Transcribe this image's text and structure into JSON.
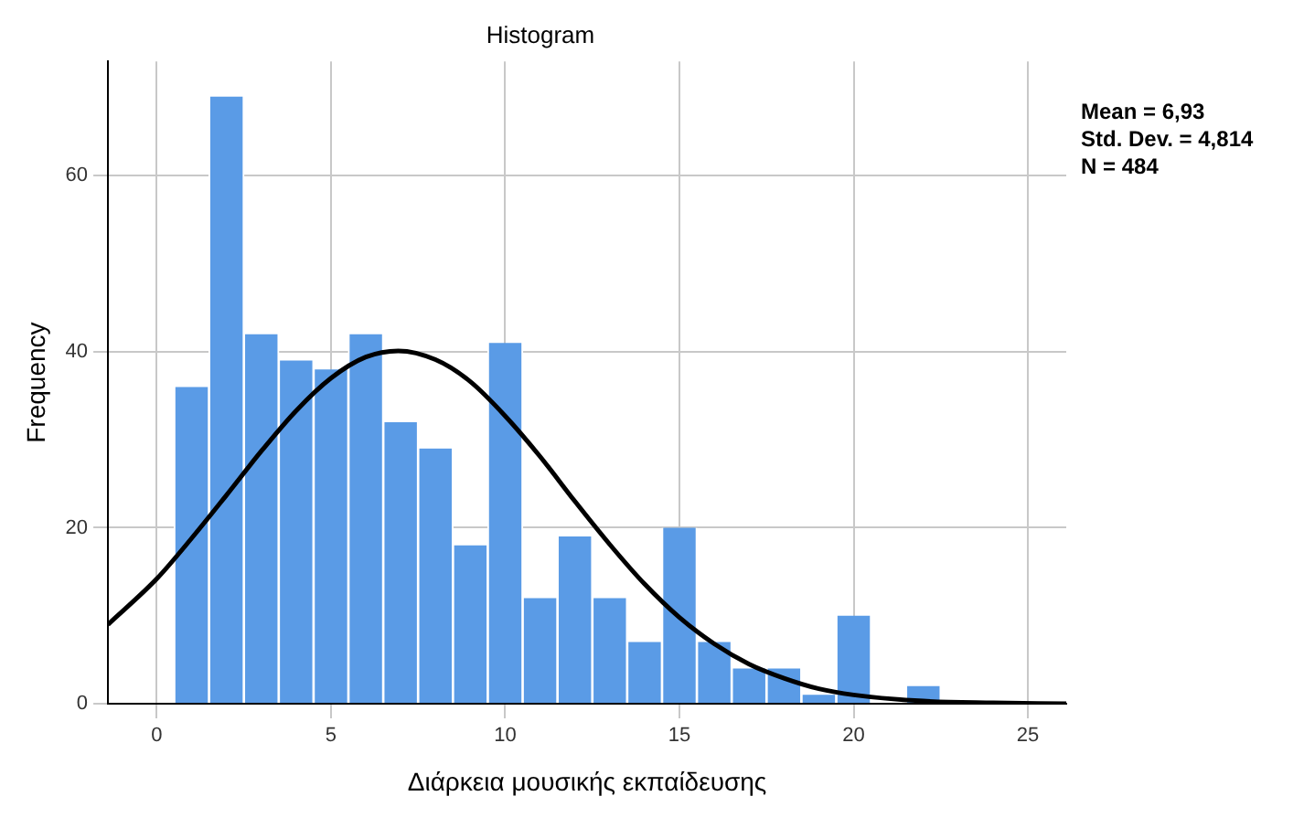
{
  "chart_data": {
    "type": "histogram",
    "title": "Histogram",
    "xlabel": "Διάρκεια μουσικής εκπαίδευσης",
    "ylabel": "Frequency",
    "bins": [
      0.5,
      1.5,
      2.5,
      3.5,
      4.5,
      5.5,
      6.5,
      7.5,
      8.5,
      9.5,
      10.5,
      11.5,
      12.5,
      13.5,
      14.5,
      15.5,
      16.5,
      17.5,
      18.5,
      19.5,
      20.5,
      21.5,
      22.5
    ],
    "values": [
      36,
      69,
      42,
      39,
      38,
      42,
      32,
      29,
      18,
      41,
      12,
      19,
      12,
      7,
      20,
      7,
      4,
      4,
      1,
      10,
      0,
      2
    ],
    "color": "#5a9be6",
    "series": [
      {
        "type": "line",
        "color": "#000000",
        "x": [
          -1.4,
          0,
          1,
          2,
          3,
          4,
          5,
          6,
          6.93,
          8,
          9,
          10,
          11,
          12,
          13,
          14,
          15,
          16,
          17,
          18,
          19,
          20,
          22,
          24,
          26.1
        ],
        "values": [
          9,
          14.2,
          18.8,
          23.7,
          28.7,
          33.3,
          37,
          39.4,
          40.1,
          39.1,
          36.6,
          32.7,
          28.1,
          23,
          18.1,
          13.6,
          9.8,
          6.8,
          4.5,
          2.9,
          1.7,
          1,
          0.3,
          0.1,
          0
        ]
      }
    ],
    "xlim": [
      -1.4,
      26.1
    ],
    "xticks": [
      0,
      5,
      10,
      15,
      20,
      25
    ],
    "ylim": [
      0,
      73
    ],
    "yticks": [
      0,
      20,
      40,
      60
    ],
    "grid": true,
    "annotations": [
      "Mean = 6,93",
      "Std. Dev. = 4,814",
      "N = 484"
    ]
  }
}
